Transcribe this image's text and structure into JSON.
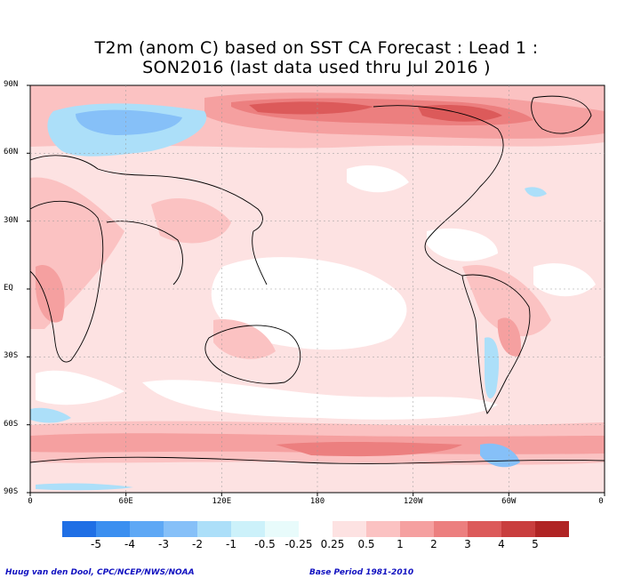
{
  "title_line1": "T2m (anom C) based on SST CA Forecast : Lead 1 :",
  "title_line2": "SON2016 (last data used thru Jul 2016 )",
  "lat_labels": [
    "90N",
    "60N",
    "30N",
    "EQ",
    "30S",
    "60S",
    "90S"
  ],
  "lon_labels": [
    "0",
    "60E",
    "120E",
    "180",
    "120W",
    "60W",
    "0"
  ],
  "legend": {
    "labels": [
      "-5",
      "-4",
      "-3",
      "-2",
      "-1",
      "-0.5",
      "-0.25",
      "0.25",
      "0.5",
      "1",
      "2",
      "3",
      "4",
      "5"
    ],
    "colors": [
      "#1f6fe5",
      "#3b8ff0",
      "#5ea8f5",
      "#86c0f8",
      "#acdff9",
      "#ccf1fa",
      "#e8fbfb",
      "#ffffff",
      "#fde2e2",
      "#fbc2c2",
      "#f5a0a0",
      "#ec7f7f",
      "#dc5a5a",
      "#c93e3e",
      "#b02424"
    ]
  },
  "credit_left": "Huug van den Dool, CPC/NCEP/NWS/NOAA",
  "credit_right": "Base Period 1981-2010"
}
